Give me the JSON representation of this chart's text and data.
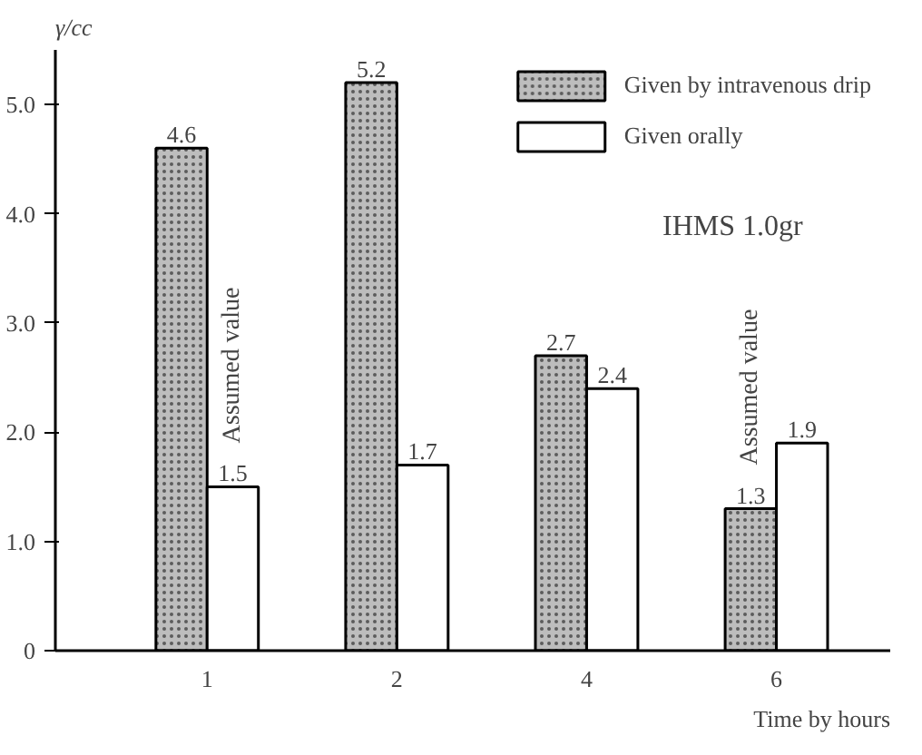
{
  "chart_data": {
    "type": "bar",
    "xlabel": "Time by hours",
    "ylabel": "γ/cc",
    "categories": [
      "1",
      "2",
      "4",
      "6"
    ],
    "series": [
      {
        "name": "Given by intravenous drip",
        "color": "#bdbdbd",
        "values": [
          4.6,
          5.2,
          2.7,
          1.3
        ]
      },
      {
        "name": "Given orally",
        "color": "#ffffff",
        "values": [
          1.5,
          1.7,
          2.4,
          1.9
        ]
      }
    ],
    "ylim": [
      0,
      5.5
    ],
    "yticks": [
      0,
      {
        "value": 1,
        "label": "1.0"
      },
      {
        "value": 2,
        "label": "2.0"
      },
      {
        "value": 3,
        "label": "3.0"
      },
      {
        "value": 4,
        "label": "4.0"
      },
      {
        "value": 5,
        "label": "5.0"
      }
    ],
    "annotations": [
      "IHMS  1.0gr",
      {
        "text": "Assumed value",
        "x": "1",
        "y": 1.5
      },
      {
        "text": "Assumed value",
        "x": "6",
        "y": 1.3
      }
    ],
    "data_labels": true,
    "legend": "top right",
    "grid": false
  }
}
